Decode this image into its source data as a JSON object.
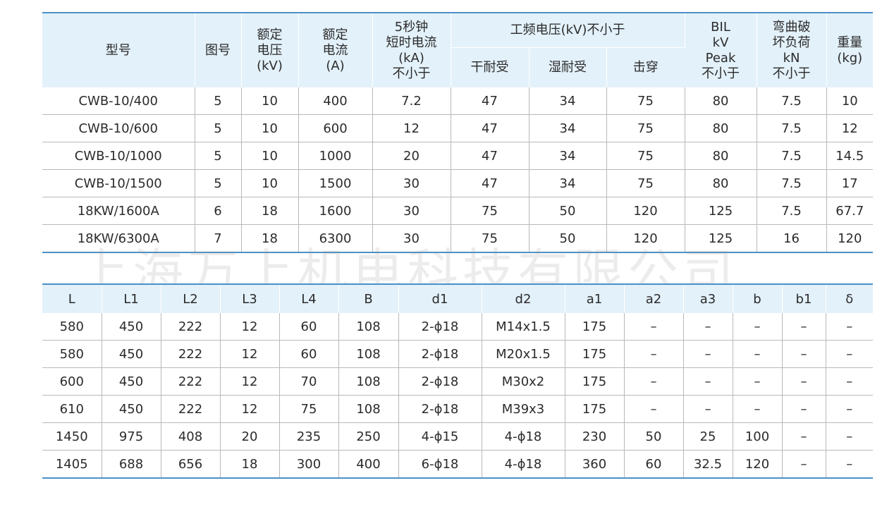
{
  "spec": {
    "headers": {
      "model": "型号",
      "figure": "图号",
      "rated_voltage": "额定\n电压\n(kV)",
      "rated_current": "额定\n电流\n(A)",
      "short_current": "5秒钟\n短时电流\n(kA)\n不小于",
      "power_freq": "工频电压(kV)不小于",
      "dry": "干耐受",
      "wet": "湿耐受",
      "breakdown": "击穿",
      "bil": "BIL\nkV\nPeak\n不小于",
      "bending": "弯曲破\n坏负荷\nkN\n不小于",
      "weight": "重量\n(kg)"
    },
    "rows": [
      [
        "CWB-10/400",
        "5",
        "10",
        "400",
        "7.2",
        "47",
        "34",
        "75",
        "80",
        "7.5",
        "10"
      ],
      [
        "CWB-10/600",
        "5",
        "10",
        "600",
        "12",
        "47",
        "34",
        "75",
        "80",
        "7.5",
        "12"
      ],
      [
        "CWB-10/1000",
        "5",
        "10",
        "1000",
        "20",
        "47",
        "34",
        "75",
        "80",
        "7.5",
        "14.5"
      ],
      [
        "CWB-10/1500",
        "5",
        "10",
        "1500",
        "30",
        "47",
        "34",
        "75",
        "80",
        "7.5",
        "17"
      ],
      [
        "18KW/1600A",
        "6",
        "18",
        "1600",
        "30",
        "75",
        "50",
        "120",
        "125",
        "7.5",
        "67.7"
      ],
      [
        "18KW/6300A",
        "7",
        "18",
        "6300",
        "30",
        "75",
        "50",
        "120",
        "125",
        "16",
        "120"
      ]
    ]
  },
  "dims": {
    "headers": [
      "L",
      "L1",
      "L2",
      "L3",
      "L4",
      "B",
      "d1",
      "d2",
      "a1",
      "a2",
      "a3",
      "b",
      "b1",
      "δ"
    ],
    "rows": [
      [
        "580",
        "450",
        "222",
        "12",
        "60",
        "108",
        "2-ϕ18",
        "M14x1.5",
        "175",
        "–",
        "–",
        "–",
        "–",
        "–"
      ],
      [
        "580",
        "450",
        "222",
        "12",
        "60",
        "108",
        "2-ϕ18",
        "M20x1.5",
        "175",
        "–",
        "–",
        "–",
        "–",
        "–"
      ],
      [
        "600",
        "450",
        "222",
        "12",
        "70",
        "108",
        "2-ϕ18",
        "M30x2",
        "175",
        "–",
        "–",
        "–",
        "–",
        "–"
      ],
      [
        "610",
        "450",
        "222",
        "12",
        "75",
        "108",
        "2-ϕ18",
        "M39x3",
        "175",
        "–",
        "–",
        "–",
        "–",
        "–"
      ],
      [
        "1450",
        "975",
        "408",
        "20",
        "235",
        "250",
        "4-ϕ15",
        "4-ϕ18",
        "230",
        "50",
        "25",
        "100",
        "–",
        "–"
      ],
      [
        "1405",
        "688",
        "656",
        "18",
        "300",
        "400",
        "6-ϕ18",
        "4-ϕ18",
        "360",
        "60",
        "32.5",
        "120",
        "–",
        "–"
      ]
    ]
  },
  "watermark": "上海万上机电科技有限公司"
}
